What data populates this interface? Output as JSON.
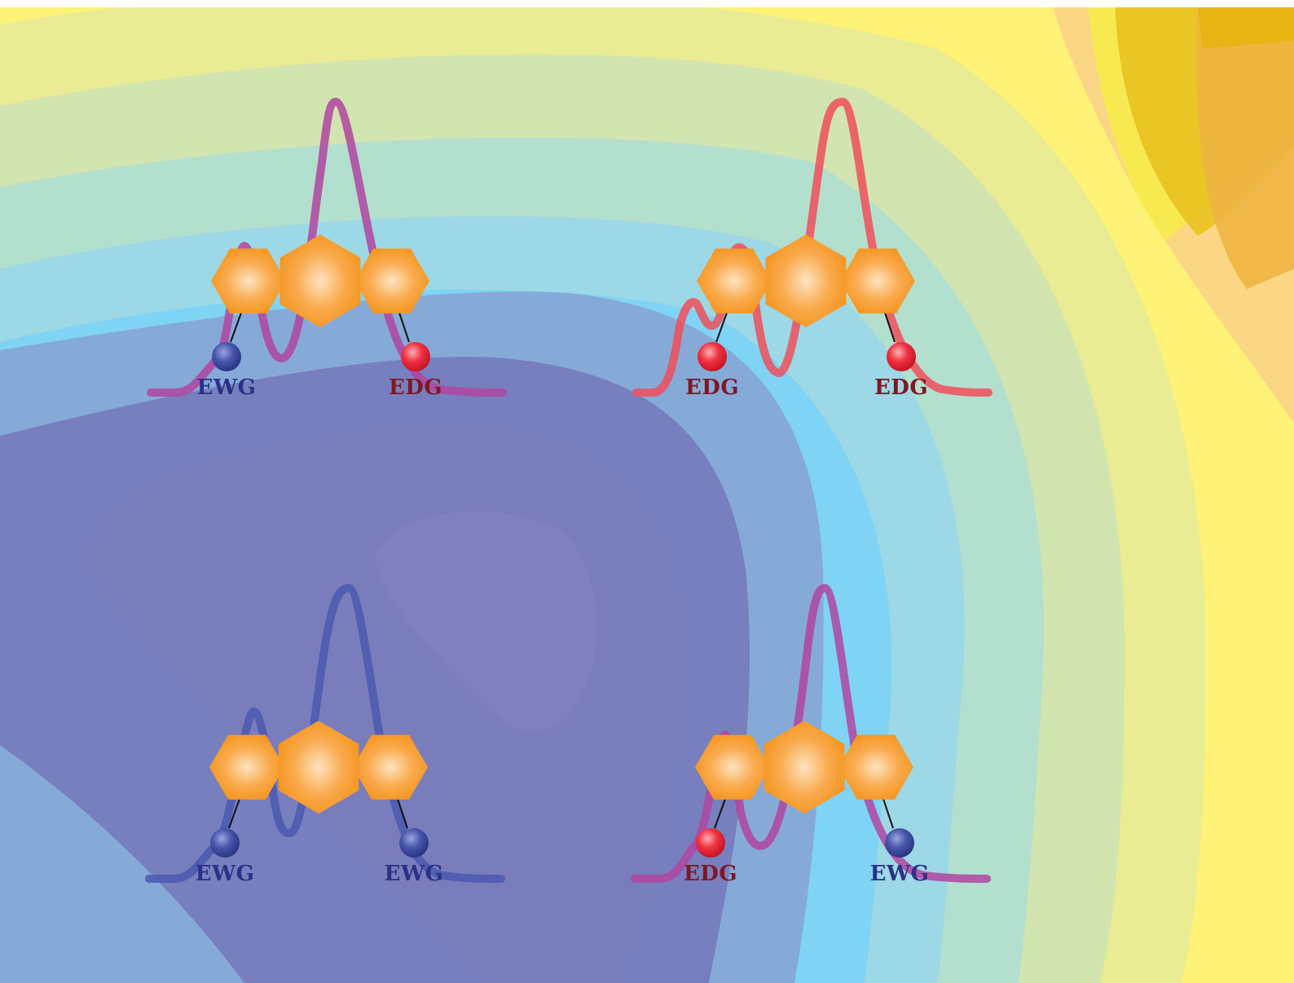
{
  "colors": {
    "ewg": "#3a4ca0",
    "edg": "#e8283a",
    "ewg_text": "#2b3186",
    "edg_text": "#7d1824",
    "ring": "#f5951f",
    "ring_center": "#ffe3c1",
    "curve_mixed": "#b045a0",
    "curve_edg": "#f04f5a",
    "curve_ewg": "#4a58b0"
  },
  "panels": [
    {
      "id": "top-left",
      "curve_color_key": "curve_mixed",
      "left": {
        "type": "EWG",
        "label": "EWG"
      },
      "right": {
        "type": "EDG",
        "label": "EDG"
      }
    },
    {
      "id": "top-right",
      "curve_color_key": "curve_edg",
      "left": {
        "type": "EDG",
        "label": "EDG"
      },
      "right": {
        "type": "EDG",
        "label": "EDG"
      }
    },
    {
      "id": "bottom-left",
      "curve_color_key": "curve_ewg",
      "left": {
        "type": "EWG",
        "label": "EWG"
      },
      "right": {
        "type": "EWG",
        "label": "EWG"
      }
    },
    {
      "id": "bottom-right",
      "curve_color_key": "curve_mixed",
      "left": {
        "type": "EDG",
        "label": "EDG"
      },
      "right": {
        "type": "EWG",
        "label": "EWG"
      }
    }
  ]
}
